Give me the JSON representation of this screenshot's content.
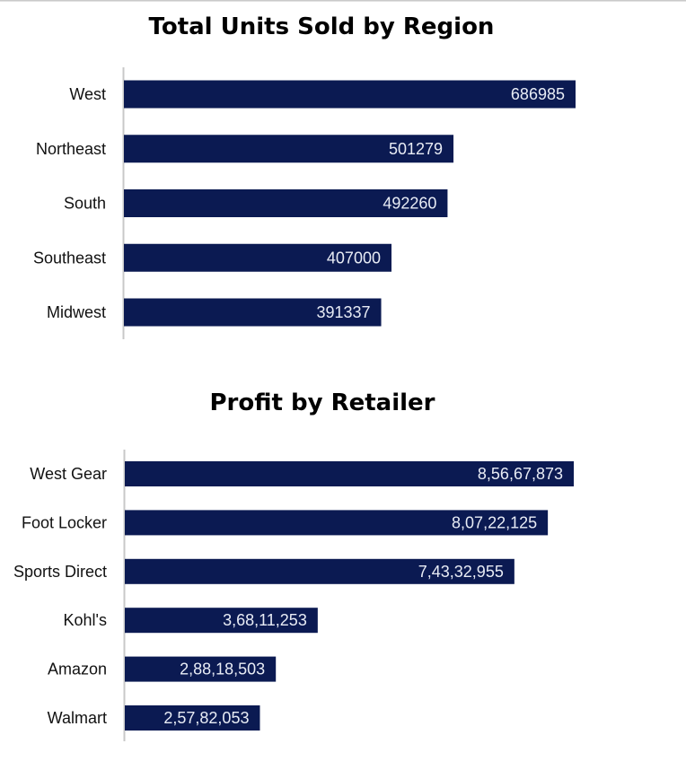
{
  "colors": {
    "bar": "#0b1a52",
    "axis": "#c8c8c8",
    "label": "#e8ecf5"
  },
  "chart_data": [
    {
      "type": "bar",
      "orientation": "horizontal",
      "title": "Total Units Sold by Region",
      "categories": [
        "West",
        "Northeast",
        "South",
        "Southeast",
        "Midwest"
      ],
      "values": [
        686985,
        501279,
        492260,
        407000,
        391337
      ],
      "value_labels": [
        "686985",
        "501279",
        "492260",
        "407000",
        "391337"
      ],
      "xlim": [
        0,
        700000
      ],
      "grid": false,
      "legend": "none"
    },
    {
      "type": "bar",
      "orientation": "horizontal",
      "title": "Profit by Retailer",
      "categories": [
        "West Gear",
        "Foot Locker",
        "Sports Direct",
        "Kohl's",
        "Amazon",
        "Walmart"
      ],
      "values": [
        85667873,
        80722125,
        74332955,
        36811253,
        28818503,
        25782053
      ],
      "value_labels": [
        "8,56,67,873",
        "8,07,22,125",
        "7,43,32,955",
        "3,68,11,253",
        "2,88,18,503",
        "2,57,82,053"
      ],
      "xlim": [
        0,
        87000000
      ],
      "grid": false,
      "legend": "none"
    }
  ]
}
